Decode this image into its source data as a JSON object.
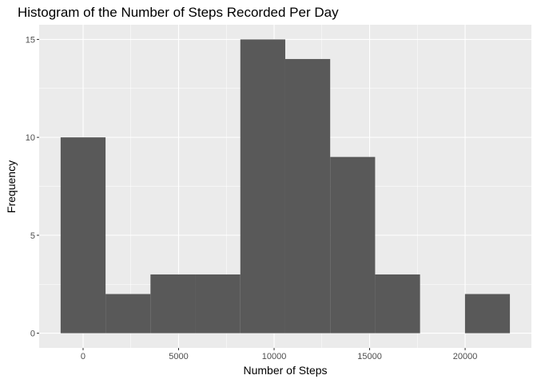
{
  "chart_data": {
    "type": "bar",
    "title": "Histogram of the Number of Steps Recorded Per Day",
    "xlabel": "Number of Steps",
    "ylabel": "Frequency",
    "bin_width": 2352,
    "bins": [
      {
        "start": -1176,
        "end": 1176,
        "count": 10
      },
      {
        "start": 1176,
        "end": 3528,
        "count": 2
      },
      {
        "start": 3528,
        "end": 5880,
        "count": 3
      },
      {
        "start": 5880,
        "end": 8232,
        "count": 3
      },
      {
        "start": 8232,
        "end": 10584,
        "count": 15
      },
      {
        "start": 10584,
        "end": 12936,
        "count": 14
      },
      {
        "start": 12936,
        "end": 15288,
        "count": 9
      },
      {
        "start": 15288,
        "end": 17640,
        "count": 3
      },
      {
        "start": 17640,
        "end": 19992,
        "count": 0
      },
      {
        "start": 19992,
        "end": 22344,
        "count": 2
      }
    ],
    "xlim": [
      -2300,
      23470
    ],
    "ylim": [
      -0.75,
      15.75
    ],
    "x_ticks": [
      0,
      5000,
      10000,
      15000,
      20000
    ],
    "x_tick_labels": [
      "0",
      "5000",
      "10000",
      "15000",
      "20000"
    ],
    "y_ticks": [
      0,
      5,
      10,
      15
    ],
    "y_tick_labels": [
      "0",
      "5",
      "10",
      "15"
    ],
    "grid": true,
    "colors": {
      "panel_background": "#ebebeb",
      "grid_major": "#ffffff",
      "bar_fill": "#595959",
      "tick_color": "#333333",
      "tick_label_color": "#4d4d4d"
    }
  }
}
